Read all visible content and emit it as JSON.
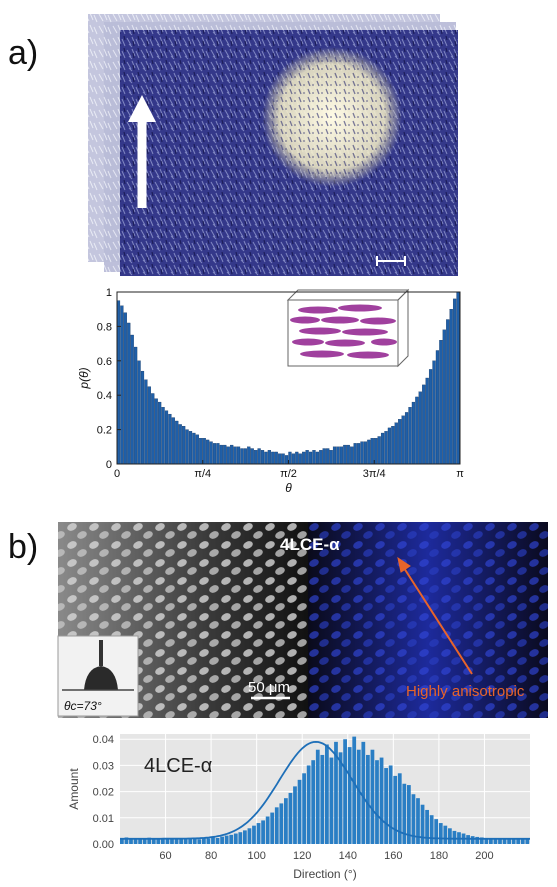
{
  "panel_a": {
    "label": "a)",
    "chart_data": {
      "type": "bar",
      "xlabel": "θ",
      "ylabel": "p(θ)",
      "ylim": [
        0,
        1
      ],
      "x_tick_labels": [
        "0",
        "π/4",
        "π/2",
        "3π/4",
        "π"
      ],
      "y_tick_labels": [
        "0",
        "0.2",
        "0.4",
        "0.6",
        "0.8",
        "1"
      ],
      "bar_color": "#1f5fa8",
      "values": [
        0.95,
        0.92,
        0.88,
        0.82,
        0.75,
        0.68,
        0.6,
        0.54,
        0.49,
        0.45,
        0.41,
        0.38,
        0.36,
        0.33,
        0.31,
        0.29,
        0.27,
        0.25,
        0.23,
        0.22,
        0.2,
        0.19,
        0.18,
        0.17,
        0.15,
        0.15,
        0.14,
        0.13,
        0.12,
        0.12,
        0.11,
        0.11,
        0.1,
        0.11,
        0.1,
        0.1,
        0.09,
        0.09,
        0.1,
        0.09,
        0.08,
        0.09,
        0.08,
        0.07,
        0.08,
        0.07,
        0.07,
        0.06,
        0.06,
        0.05,
        0.07,
        0.06,
        0.07,
        0.06,
        0.07,
        0.08,
        0.07,
        0.08,
        0.07,
        0.08,
        0.09,
        0.09,
        0.08,
        0.1,
        0.1,
        0.1,
        0.11,
        0.11,
        0.1,
        0.12,
        0.12,
        0.13,
        0.13,
        0.14,
        0.15,
        0.15,
        0.16,
        0.18,
        0.19,
        0.21,
        0.22,
        0.24,
        0.26,
        0.28,
        0.3,
        0.33,
        0.36,
        0.39,
        0.42,
        0.46,
        0.5,
        0.55,
        0.6,
        0.66,
        0.72,
        0.78,
        0.84,
        0.9,
        0.96,
        1.0
      ]
    }
  },
  "panel_b": {
    "label": "b)",
    "image_title": "4LCE-α",
    "scale_bar_text": "50 μm",
    "annotation_text": "Highly anisotropic",
    "annotation_color": "#e8642a",
    "contact_angle_label": "θc=73°",
    "chart_data": {
      "type": "bar",
      "title": "4LCE-α",
      "xlabel": "Direction (°)",
      "ylabel": "Amount",
      "xlim": [
        40,
        220
      ],
      "ylim": [
        0,
        0.042
      ],
      "x_ticks": [
        60,
        80,
        100,
        120,
        140,
        160,
        180,
        200
      ],
      "y_tick_labels": [
        "0.00",
        "0.01",
        "0.02",
        "0.03",
        "0.04"
      ],
      "bar_color": "#2a7ec4",
      "fit_line": "gaussian",
      "fit_params": {
        "mean": 126,
        "sd": 16,
        "peak": 0.039,
        "baseline": 0.002
      },
      "values": [
        0.002,
        0.0025,
        0.0018,
        0.002,
        0.0022,
        0.0019,
        0.0024,
        0.002,
        0.0021,
        0.0018,
        0.0023,
        0.002,
        0.0022,
        0.0019,
        0.0021,
        0.002,
        0.0024,
        0.0018,
        0.0022,
        0.0021,
        0.0025,
        0.0023,
        0.0028,
        0.0032,
        0.0035,
        0.004,
        0.0045,
        0.0052,
        0.006,
        0.007,
        0.008,
        0.009,
        0.0105,
        0.012,
        0.014,
        0.0155,
        0.0175,
        0.0195,
        0.022,
        0.0245,
        0.027,
        0.03,
        0.032,
        0.036,
        0.034,
        0.038,
        0.033,
        0.039,
        0.035,
        0.04,
        0.037,
        0.041,
        0.036,
        0.039,
        0.034,
        0.036,
        0.032,
        0.033,
        0.029,
        0.03,
        0.026,
        0.027,
        0.023,
        0.0225,
        0.019,
        0.0175,
        0.015,
        0.013,
        0.011,
        0.0095,
        0.008,
        0.007,
        0.006,
        0.005,
        0.0045,
        0.004,
        0.0034,
        0.003,
        0.0027,
        0.0025,
        0.0023,
        0.0021,
        0.002,
        0.0022,
        0.0019,
        0.0021,
        0.002,
        0.0023,
        0.0018,
        0.0022
      ]
    }
  }
}
